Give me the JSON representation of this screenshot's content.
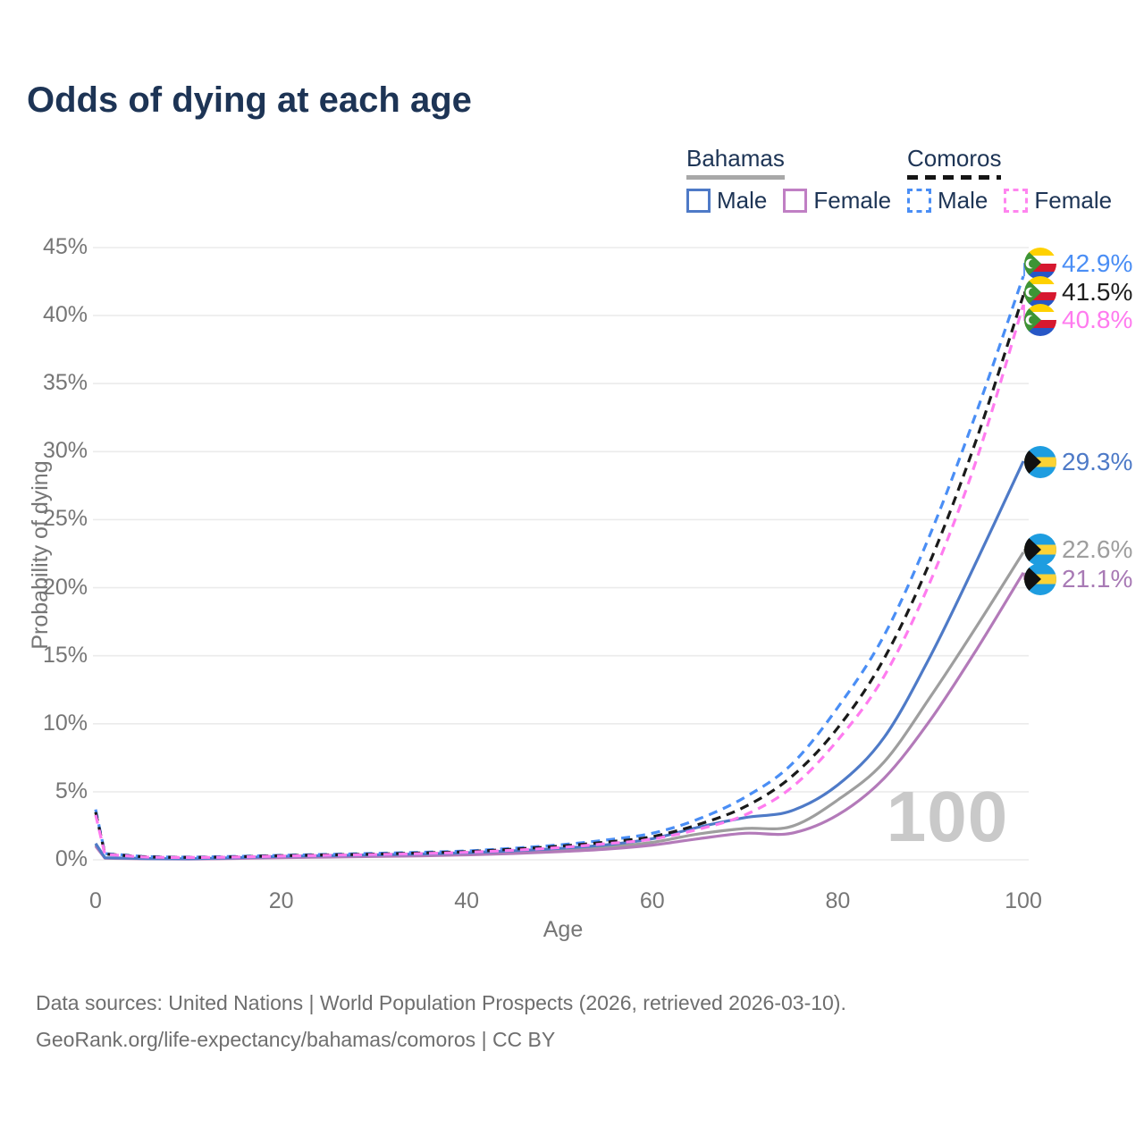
{
  "title": "Odds of dying at each age",
  "watermark": "100",
  "legend": {
    "groups": [
      {
        "country": "Bahamas",
        "line_style": "solid",
        "underline_color": "#a8a8a8",
        "items": [
          {
            "label": "Male",
            "color": "#4e7ac7",
            "dashed": false
          },
          {
            "label": "Female",
            "color": "#c07fc4",
            "dashed": false
          }
        ]
      },
      {
        "country": "Comoros",
        "line_style": "dashed",
        "underline_color": "#151515",
        "items": [
          {
            "label": "Male",
            "color": "#4a8ef5",
            "dashed": true
          },
          {
            "label": "Female",
            "color": "#ff85ef",
            "dashed": true
          }
        ]
      }
    ]
  },
  "footer": {
    "line1": "Data sources: United Nations | World Population Prospects (2026, retrieved 2026-03-10).",
    "line2": "GeoRank.org/life-expectancy/bahamas/comoros | CC BY"
  },
  "chart_data": {
    "type": "line",
    "title": "Odds of dying at each age",
    "xlabel": "Age",
    "ylabel": "Probability of dying",
    "xlim": [
      0,
      100
    ],
    "ylim": [
      0,
      45
    ],
    "grid": "horizontal",
    "x_tick_values": [
      0,
      20,
      40,
      60,
      80,
      100
    ],
    "x_tick_labels": [
      "0",
      "20",
      "40",
      "60",
      "80",
      "100"
    ],
    "y_tick_values": [
      0,
      5,
      10,
      15,
      20,
      25,
      30,
      35,
      40,
      45
    ],
    "y_tick_labels": [
      "0%",
      "5%",
      "10%",
      "15%",
      "20%",
      "25%",
      "30%",
      "35%",
      "40%",
      "45%"
    ],
    "x": [
      0,
      1,
      5,
      10,
      15,
      20,
      25,
      30,
      35,
      40,
      45,
      50,
      55,
      60,
      65,
      70,
      75,
      80,
      85,
      90,
      95,
      100
    ],
    "series": [
      {
        "name": "Bahamas Male",
        "country": "Bahamas",
        "sex": "male",
        "color": "#4e7ac7",
        "dashed": false,
        "end_label": "29.3%",
        "end_label_color": "#4e7ac7",
        "values": [
          1.2,
          0.15,
          0.1,
          0.08,
          0.15,
          0.25,
          0.3,
          0.36,
          0.43,
          0.52,
          0.66,
          0.84,
          1.1,
          1.55,
          2.4,
          3.1,
          3.6,
          5.5,
          9.0,
          15.0,
          22.0,
          29.3
        ]
      },
      {
        "name": "Bahamas Female",
        "country": "Bahamas",
        "sex": "female",
        "color": "#b37ab9",
        "dashed": false,
        "end_label": "21.1%",
        "end_label_color": "#a87ab5",
        "values": [
          1.0,
          0.12,
          0.08,
          0.06,
          0.1,
          0.16,
          0.2,
          0.24,
          0.29,
          0.36,
          0.46,
          0.6,
          0.78,
          1.08,
          1.55,
          1.95,
          1.95,
          3.3,
          6.0,
          10.3,
          15.5,
          21.1
        ]
      },
      {
        "name": "Bahamas Both Sexes",
        "country": "Bahamas",
        "sex": "both",
        "color": "#9e9e9e",
        "dashed": false,
        "end_label": "22.6%",
        "end_label_color": "#9e9e9e",
        "values": [
          1.1,
          0.13,
          0.09,
          0.07,
          0.12,
          0.2,
          0.24,
          0.29,
          0.35,
          0.43,
          0.55,
          0.7,
          0.92,
          1.28,
          1.9,
          2.3,
          2.45,
          4.4,
          7.2,
          12.0,
          17.2,
          22.6
        ]
      },
      {
        "name": "Comoros Male",
        "country": "Comoros",
        "sex": "male",
        "color": "#4a8ef5",
        "dashed": true,
        "end_label": "42.9%",
        "end_label_color": "#4a8ef5",
        "values": [
          3.7,
          0.45,
          0.25,
          0.2,
          0.25,
          0.33,
          0.4,
          0.47,
          0.55,
          0.65,
          0.85,
          1.1,
          1.45,
          1.95,
          3.0,
          4.6,
          7.0,
          11.2,
          16.5,
          24.0,
          33.0,
          42.9
        ]
      },
      {
        "name": "Comoros Female",
        "country": "Comoros",
        "sex": "female",
        "color": "#ff7bef",
        "dashed": true,
        "end_label": "40.8%",
        "end_label_color": "#ff7bef",
        "values": [
          3.3,
          0.4,
          0.21,
          0.17,
          0.2,
          0.27,
          0.33,
          0.38,
          0.45,
          0.55,
          0.7,
          0.9,
          1.18,
          1.52,
          2.25,
          3.3,
          5.3,
          8.8,
          13.5,
          20.5,
          29.5,
          40.8
        ]
      },
      {
        "name": "Comoros Both Sexes",
        "country": "Comoros",
        "sex": "both",
        "color": "#1a1a1a",
        "dashed": true,
        "end_label": "41.5%",
        "end_label_color": "#1f1f1f",
        "values": [
          3.5,
          0.42,
          0.23,
          0.18,
          0.22,
          0.3,
          0.36,
          0.42,
          0.5,
          0.6,
          0.78,
          1.0,
          1.3,
          1.7,
          2.6,
          3.9,
          6.1,
          9.7,
          14.8,
          22.0,
          31.0,
          41.5
        ]
      }
    ],
    "end_labels": [
      {
        "label": "42.9%",
        "series_index": 3,
        "flag": "comoros"
      },
      {
        "label": "41.5%",
        "series_index": 5,
        "flag": "comoros"
      },
      {
        "label": "40.8%",
        "series_index": 4,
        "flag": "comoros"
      },
      {
        "label": "29.3%",
        "series_index": 0,
        "flag": "bahamas"
      },
      {
        "label": "22.6%",
        "series_index": 2,
        "flag": "bahamas"
      },
      {
        "label": "21.1%",
        "series_index": 1,
        "flag": "bahamas"
      }
    ]
  }
}
